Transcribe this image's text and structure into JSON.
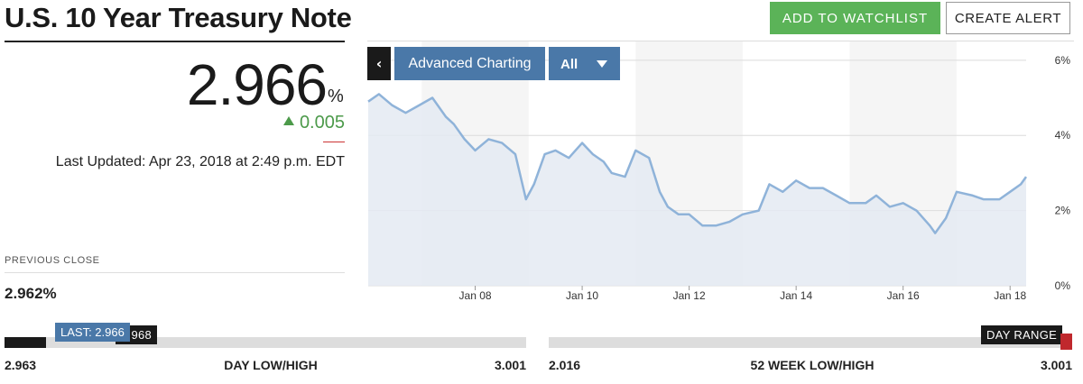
{
  "header": {
    "title": "U.S. 10 Year Treasury Note",
    "add_watchlist_label": "ADD TO WATCHLIST",
    "create_alert_label": "CREATE ALERT"
  },
  "quote": {
    "price": "2.966",
    "unit": "%",
    "change": "0.005",
    "last_updated": "Last Updated: Apr 23, 2018 at 2:49 p.m. EDT",
    "previous_close_label": "PREVIOUS CLOSE",
    "previous_close": "2.962%"
  },
  "chart_controls": {
    "prev_label": "‹",
    "advanced_label": "Advanced Charting",
    "range_label": "All"
  },
  "chart_data": {
    "type": "area",
    "x_ticks": [
      "Jan 08",
      "Jan 10",
      "Jan 12",
      "Jan 14",
      "Jan 16",
      "Jan 18"
    ],
    "y_ticks": [
      "0%",
      "2%",
      "4%",
      "6%"
    ],
    "ylim": [
      0,
      6.5
    ],
    "x": [
      2006.0,
      2006.2,
      2006.45,
      2006.7,
      2006.95,
      2007.2,
      2007.45,
      2007.6,
      2007.8,
      2008.0,
      2008.25,
      2008.5,
      2008.75,
      2008.95,
      2009.1,
      2009.3,
      2009.5,
      2009.75,
      2010.0,
      2010.2,
      2010.4,
      2010.55,
      2010.8,
      2011.0,
      2011.25,
      2011.45,
      2011.6,
      2011.8,
      2012.0,
      2012.25,
      2012.5,
      2012.75,
      2013.0,
      2013.3,
      2013.5,
      2013.75,
      2014.0,
      2014.25,
      2014.5,
      2014.75,
      2015.0,
      2015.3,
      2015.5,
      2015.75,
      2016.0,
      2016.25,
      2016.5,
      2016.6,
      2016.8,
      2017.0,
      2017.3,
      2017.5,
      2017.8,
      2018.0,
      2018.2,
      2018.3
    ],
    "values": [
      4.9,
      5.1,
      4.8,
      4.6,
      4.8,
      5.0,
      4.5,
      4.3,
      3.9,
      3.6,
      3.9,
      3.8,
      3.5,
      2.3,
      2.7,
      3.5,
      3.6,
      3.4,
      3.8,
      3.5,
      3.3,
      3.0,
      2.9,
      3.6,
      3.4,
      2.5,
      2.1,
      1.9,
      1.9,
      1.6,
      1.6,
      1.7,
      1.9,
      2.0,
      2.7,
      2.5,
      2.8,
      2.6,
      2.6,
      2.4,
      2.2,
      2.2,
      2.4,
      2.1,
      2.2,
      2.0,
      1.6,
      1.4,
      1.8,
      2.5,
      2.4,
      2.3,
      2.3,
      2.5,
      2.7,
      2.9
    ],
    "xlim": [
      2006.0,
      2018.3
    ],
    "shaded_periods": [
      [
        2007.0,
        2009.0
      ],
      [
        2011.0,
        2013.0
      ],
      [
        2015.0,
        2017.0
      ]
    ],
    "grid": true,
    "line_color": "#8fb3d9",
    "fill_color": "#e4eaf2"
  },
  "day_range": {
    "low": "2.963",
    "label": "DAY LOW/HIGH",
    "high": "3.001",
    "open_value": "2.968",
    "last_label": "LAST: 2.966",
    "position": 0.08
  },
  "week52_range": {
    "low": "2.016",
    "label": "52 WEEK LOW/HIGH",
    "high": "3.001",
    "tag_label": "DAY RANGE",
    "position": 0.99
  }
}
